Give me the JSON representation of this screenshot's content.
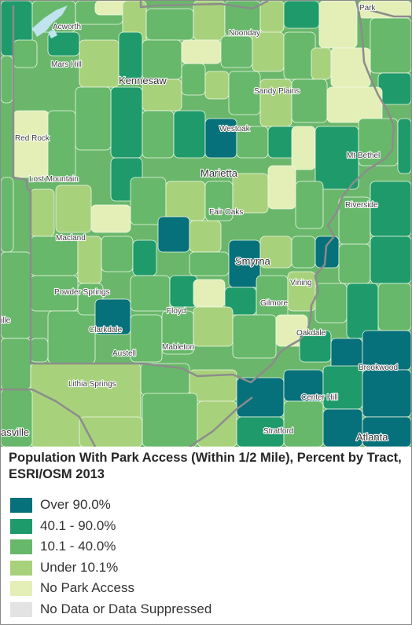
{
  "map": {
    "places": [
      "Acworth",
      "Noonday",
      "Park",
      "Mars Hill",
      "Kennesaw",
      "Sandy Plains",
      "Westoak",
      "Red Rock",
      "Marietta",
      "Mt Bethel",
      "Lost Mountain",
      "Riverside",
      "Fair Oaks",
      "Macland",
      "Smyrna",
      "Vining",
      "Powder Springs",
      "Gilmore",
      "ille",
      "Floyd",
      "Clarkdale",
      "Oakdale",
      "Mableton",
      "Austell",
      "Brookwood",
      "Center Hill",
      "Lithia Springs",
      "asville",
      "Stratford",
      "Atlanta"
    ],
    "colors": {
      "background": "#6ab76b",
      "boundary": "#8c8c8c",
      "tract_border": "#f1f8ea",
      "water": "#bfe4ee",
      "labels": "#3c3c3c"
    }
  },
  "legend": {
    "title": "Population With Park Access (Within 1/2 Mile), Percent by Tract, ESRI/OSM 2013",
    "items": [
      {
        "label": "Over 90.0%",
        "color": "#06717a"
      },
      {
        "label": "40.1 - 90.0%",
        "color": "#1f9a6b"
      },
      {
        "label": "10.1 - 40.0%",
        "color": "#67b86a"
      },
      {
        "label": "Under 10.1%",
        "color": "#a8d17b"
      },
      {
        "label": "No Park Access",
        "color": "#e3efb7"
      },
      {
        "label": "No Data or Data Suppressed",
        "color": "#e3e3e3"
      }
    ]
  }
}
